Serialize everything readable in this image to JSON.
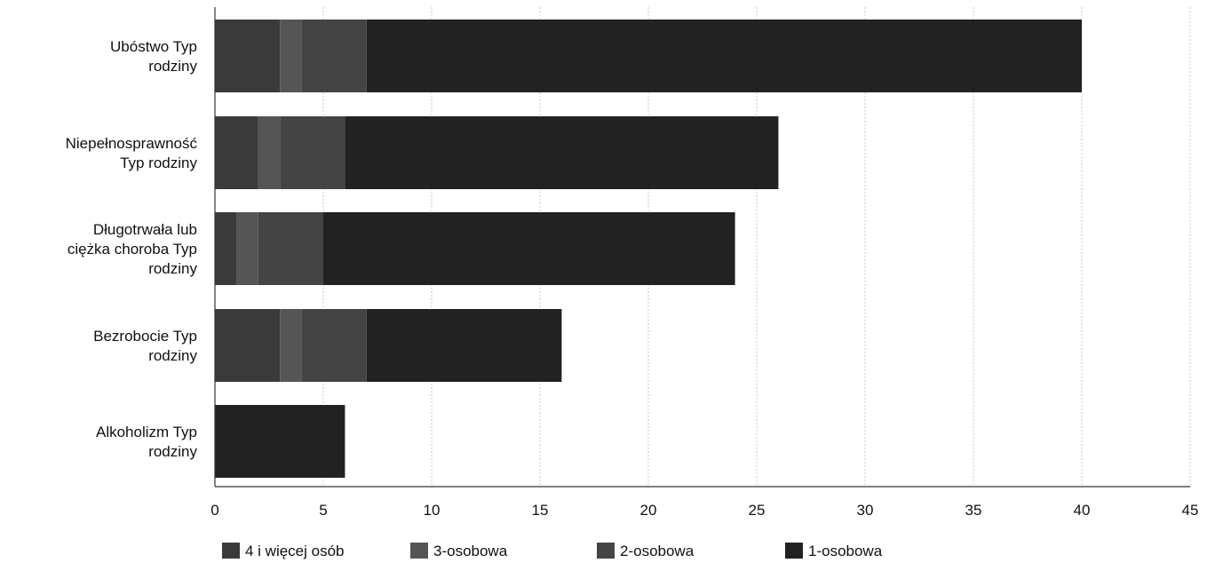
{
  "chart_data": {
    "type": "bar",
    "orientation": "horizontal",
    "stacked": true,
    "categories": [
      [
        "Ubóstwo Typ",
        "rodziny"
      ],
      [
        "Niepełnosprawność",
        "Typ rodziny"
      ],
      [
        "Długotrwała lub",
        "ciężka choroba Typ",
        "rodziny"
      ],
      [
        "Bezrobocie Typ",
        "rodziny"
      ],
      [
        "Alkoholizm Typ",
        "rodziny"
      ]
    ],
    "series": [
      {
        "name": "4  i więcej osób",
        "color": "#3a3a3a",
        "values": [
          3,
          2,
          1,
          3,
          0
        ]
      },
      {
        "name": "3-osobowa",
        "color": "#555555",
        "values": [
          1,
          1,
          1,
          1,
          0
        ]
      },
      {
        "name": "2-osobowa",
        "color": "#444444",
        "values": [
          3,
          3,
          3,
          3,
          0
        ]
      },
      {
        "name": "1-osobowa",
        "color": "#222222",
        "values": [
          33,
          20,
          19,
          9,
          6
        ]
      }
    ],
    "x_ticks": [
      0,
      5,
      10,
      15,
      20,
      25,
      30,
      35,
      40,
      45
    ],
    "xlim": [
      0,
      45
    ],
    "grid": true,
    "legend_position": "bottom"
  }
}
